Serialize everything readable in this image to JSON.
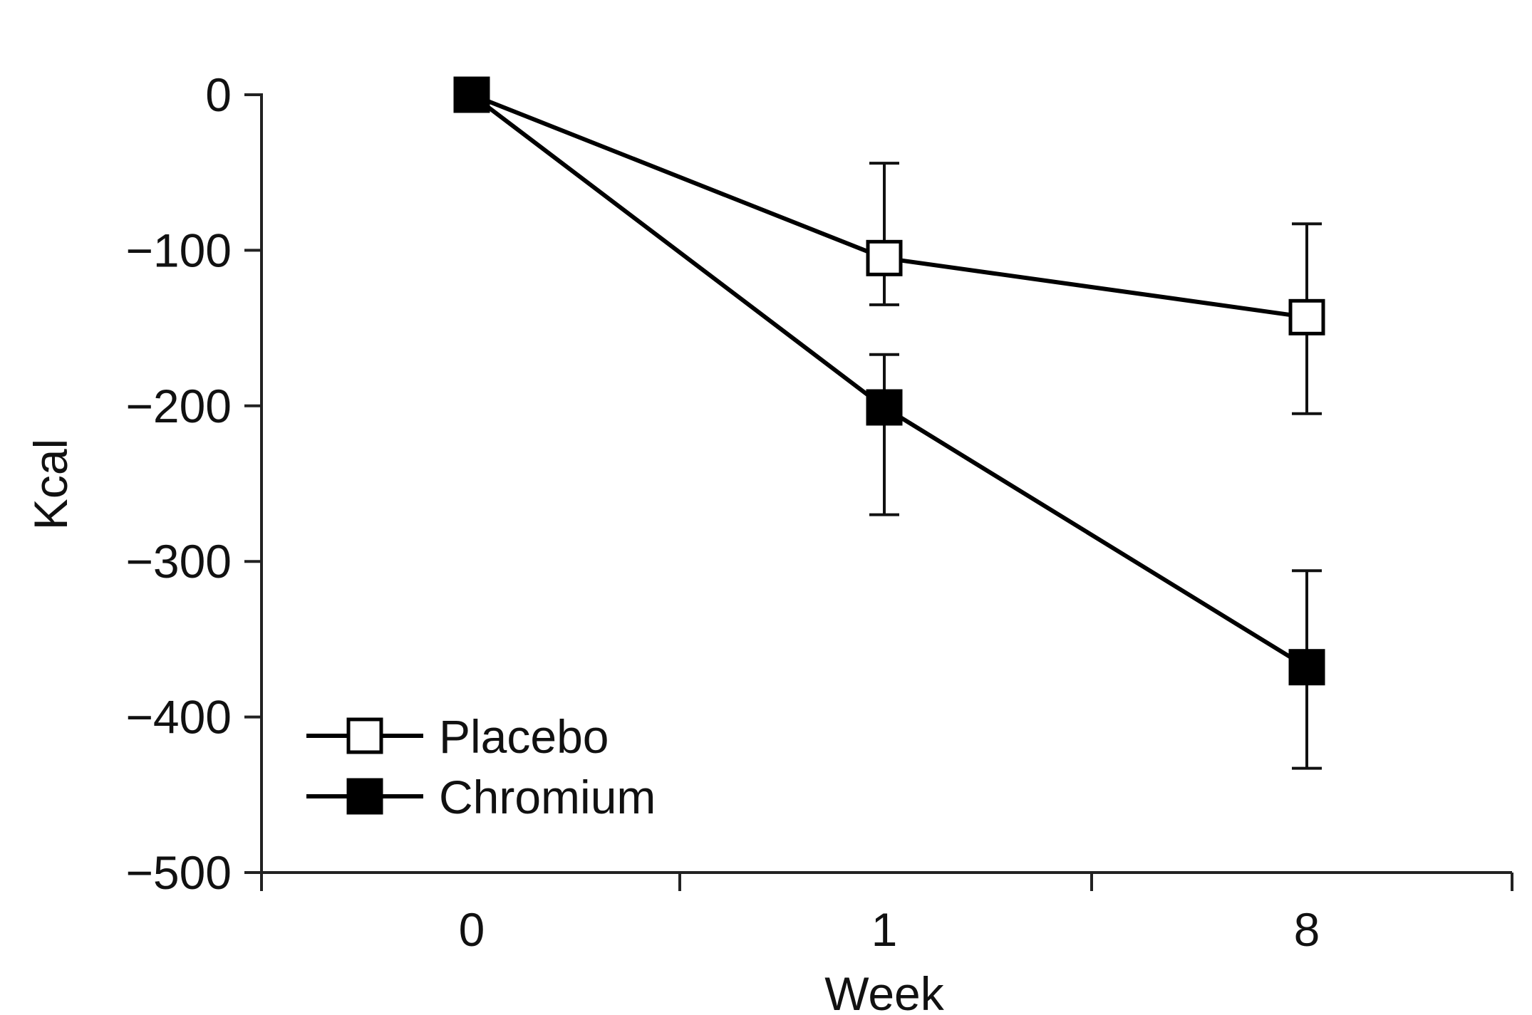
{
  "chart_data": {
    "type": "line",
    "title": "",
    "xlabel": "Week",
    "ylabel": "Kcal",
    "categories": [
      "0",
      "1",
      "8"
    ],
    "ylim": [
      -500,
      0
    ],
    "yticks": [
      0,
      -100,
      -200,
      -300,
      -400,
      -500
    ],
    "ytick_labels": [
      "0",
      "−100",
      "−200",
      "−300",
      "−400",
      "−500"
    ],
    "grid": false,
    "legend_position": "bottom-left",
    "series": [
      {
        "name": "Placebo",
        "marker": "open-square",
        "color": "#000000",
        "values": [
          0,
          -105,
          -143
        ],
        "error_low": [
          0,
          -135,
          -205
        ],
        "error_high": [
          0,
          -44,
          -83
        ]
      },
      {
        "name": "Chromium",
        "marker": "filled-square",
        "color": "#000000",
        "values": [
          0,
          -201,
          -368
        ],
        "error_low": [
          0,
          -270,
          -433
        ],
        "error_high": [
          0,
          -167,
          -306
        ]
      }
    ]
  }
}
